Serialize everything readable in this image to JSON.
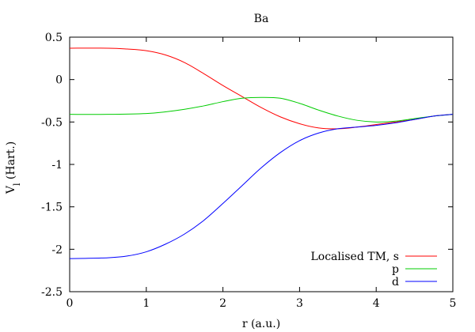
{
  "chart_data": {
    "type": "line",
    "title": "Ba",
    "xlabel": "r (a.u.)",
    "ylabel_main": "V",
    "ylabel_sub": "l",
    "ylabel_rest": " (Hart.)",
    "xlim": [
      0,
      5
    ],
    "ylim": [
      -2.5,
      0.5
    ],
    "x_ticks": [
      0,
      1,
      2,
      3,
      4,
      5
    ],
    "x_tick_labels": [
      "0",
      "1",
      "2",
      "3",
      "4",
      "5"
    ],
    "y_ticks": [
      0.5,
      0,
      -0.5,
      -1,
      -1.5,
      -2,
      -2.5
    ],
    "y_tick_labels": [
      "0.5",
      "0",
      "-0.5",
      "-1",
      "-1.5",
      "-2",
      "-2.5"
    ],
    "grid": false,
    "legend_position": "bottom-right",
    "series": [
      {
        "name": "Localised TM, s",
        "color": "#ff0000",
        "x": [
          0,
          0.5,
          0.75,
          1.0,
          1.25,
          1.5,
          1.75,
          2.0,
          2.25,
          2.5,
          2.75,
          3.0,
          3.25,
          3.5,
          3.75,
          4.0,
          4.25,
          4.5,
          4.75,
          5.0
        ],
        "y": [
          0.37,
          0.37,
          0.36,
          0.34,
          0.29,
          0.2,
          0.07,
          -0.07,
          -0.2,
          -0.33,
          -0.44,
          -0.52,
          -0.57,
          -0.58,
          -0.56,
          -0.53,
          -0.5,
          -0.47,
          -0.43,
          -0.41
        ]
      },
      {
        "name": "p",
        "color": "#00cc00",
        "x": [
          0,
          0.5,
          1.0,
          1.25,
          1.5,
          1.75,
          2.0,
          2.25,
          2.5,
          2.75,
          3.0,
          3.25,
          3.5,
          3.75,
          4.0,
          4.25,
          4.5,
          4.75,
          5.0
        ],
        "y": [
          -0.41,
          -0.41,
          -0.4,
          -0.38,
          -0.35,
          -0.31,
          -0.26,
          -0.22,
          -0.21,
          -0.22,
          -0.28,
          -0.36,
          -0.43,
          -0.48,
          -0.5,
          -0.49,
          -0.46,
          -0.43,
          -0.41
        ]
      },
      {
        "name": "d",
        "color": "#0000ff",
        "x": [
          0,
          0.5,
          0.75,
          1.0,
          1.25,
          1.5,
          1.75,
          2.0,
          2.25,
          2.5,
          2.75,
          3.0,
          3.25,
          3.5,
          3.75,
          4.0,
          4.25,
          4.5,
          4.75,
          5.0
        ],
        "y": [
          -2.11,
          -2.1,
          -2.08,
          -2.03,
          -1.94,
          -1.82,
          -1.66,
          -1.46,
          -1.25,
          -1.04,
          -0.86,
          -0.72,
          -0.63,
          -0.58,
          -0.56,
          -0.54,
          -0.51,
          -0.47,
          -0.43,
          -0.41
        ]
      }
    ]
  }
}
